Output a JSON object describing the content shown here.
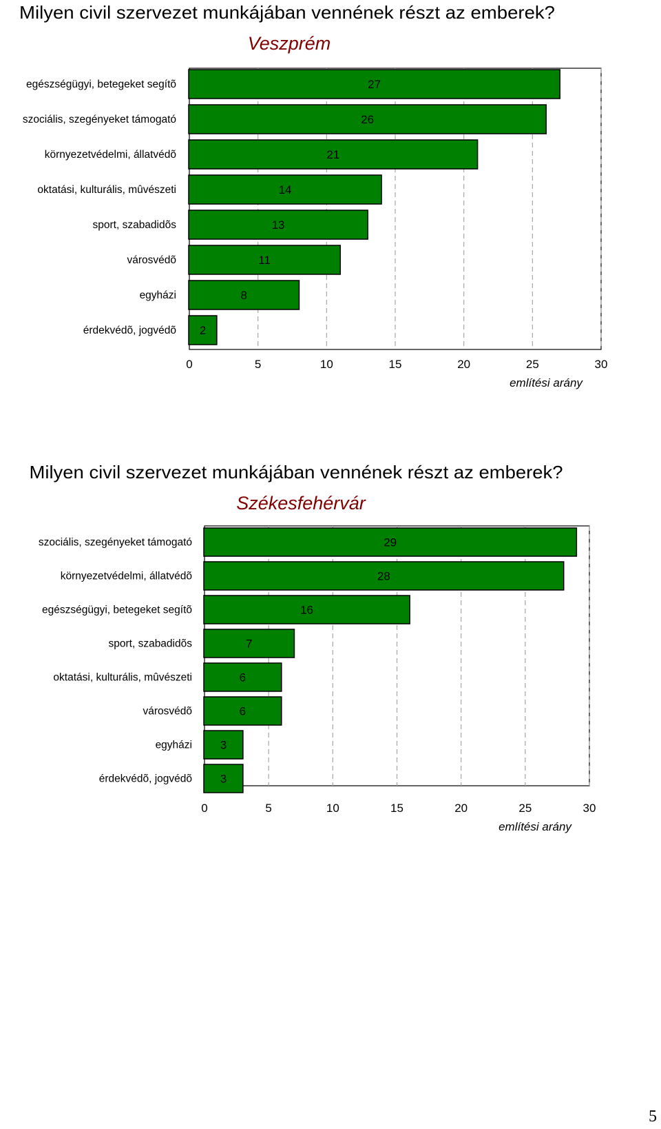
{
  "colors": {
    "bar": "#008000",
    "subtitle": "#7f0000",
    "grid": "#a6a6a6",
    "text": "#000000"
  },
  "page_number": "5",
  "chart_data": [
    {
      "type": "bar",
      "orientation": "horizontal",
      "title": "Milyen civil szervezet munkájában vennének részt az emberek?",
      "subtitle": "Veszprém",
      "categories": [
        "egészségügyi, betegeket segítõ",
        "szociális, szegényeket támogató",
        "környezetvédelmi, állatvédõ",
        "oktatási, kulturális, mûvészeti",
        "sport, szabadidõs",
        "városvédõ",
        "egyházi",
        "érdekvédõ, jogvédõ"
      ],
      "values": [
        27,
        26,
        21,
        14,
        13,
        11,
        8,
        2
      ],
      "xlabel": "említési arány",
      "ylabel": "",
      "xlim": [
        0,
        30
      ],
      "xticks": [
        0,
        5,
        10,
        15,
        20,
        25,
        30
      ],
      "grid": "vertical-dashed",
      "legend": "none"
    },
    {
      "type": "bar",
      "orientation": "horizontal",
      "title": "Milyen civil szervezet munkájában vennének részt az emberek?",
      "subtitle": "Székesfehérvár",
      "categories": [
        "szociális, szegényeket támogató",
        "környezetvédelmi, állatvédõ",
        "egészségügyi, betegeket segítõ",
        "sport, szabadidõs",
        "oktatási, kulturális, mûvészeti",
        "városvédõ",
        "egyházi",
        "érdekvédõ, jogvédõ"
      ],
      "values": [
        29,
        28,
        16,
        7,
        6,
        6,
        3,
        3
      ],
      "xlabel": "említési arány",
      "ylabel": "",
      "xlim": [
        0,
        30
      ],
      "xticks": [
        0,
        5,
        10,
        15,
        20,
        25,
        30
      ],
      "grid": "vertical-dashed",
      "legend": "none"
    }
  ]
}
